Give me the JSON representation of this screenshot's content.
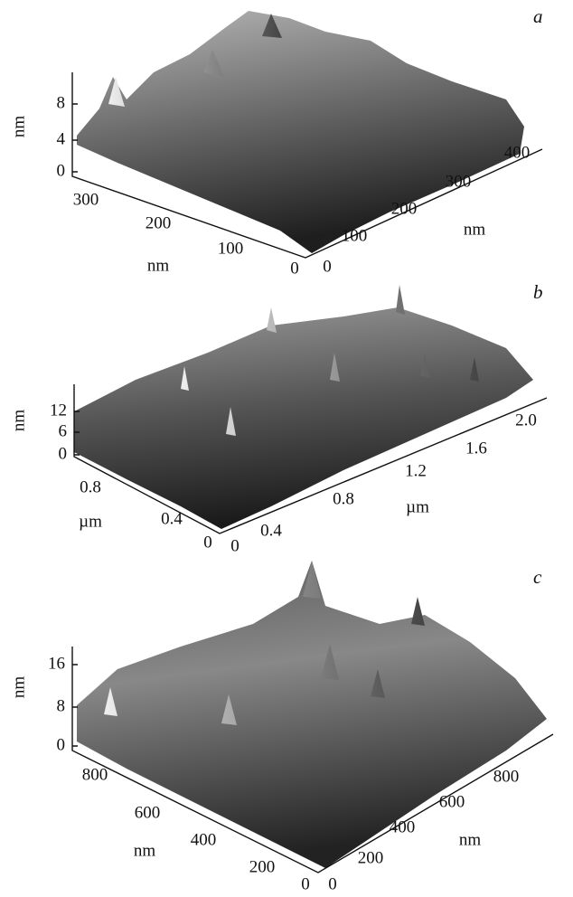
{
  "panels": [
    {
      "label": "a",
      "z_label": "nm",
      "z_ticks": [
        "8",
        "4",
        "0"
      ],
      "left_ticks": [
        "300",
        "200",
        "100",
        "0"
      ],
      "left_label": "nm",
      "right_ticks": [
        "0",
        "100",
        "200",
        "300",
        "400"
      ],
      "right_label": "nm"
    },
    {
      "label": "b",
      "z_label": "nm",
      "z_ticks": [
        "12",
        "6",
        "0"
      ],
      "left_ticks": [
        "0.8",
        "0.4",
        "0"
      ],
      "left_label": "µm",
      "right_ticks": [
        "0",
        "0.4",
        "0.8",
        "1.2",
        "1.6",
        "2.0"
      ],
      "right_label": "µm"
    },
    {
      "label": "c",
      "z_label": "nm",
      "z_ticks": [
        "16",
        "8",
        "0"
      ],
      "left_ticks": [
        "800",
        "600",
        "400",
        "200",
        "0"
      ],
      "left_label": "nm",
      "right_ticks": [
        "0",
        "200",
        "400",
        "600",
        "800"
      ],
      "right_label": "nm"
    }
  ]
}
